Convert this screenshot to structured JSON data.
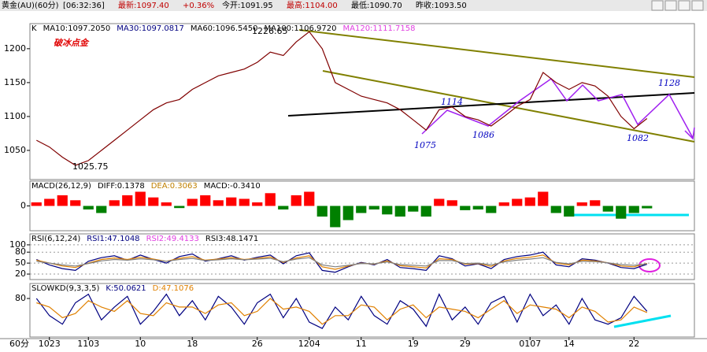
{
  "top_bar": [
    {
      "text": "黄金(AU)(60分)",
      "color": "#000000"
    },
    {
      "text": "[06:32:36]",
      "color": "#000000"
    },
    {
      "text": "最新:1097.40",
      "color": "#c00000"
    },
    {
      "text": "+0.36%",
      "color": "#c00000"
    },
    {
      "text": "今开:1091.95",
      "color": "#000000"
    },
    {
      "text": "最高:1104.00",
      "color": "#c00000"
    },
    {
      "text": "最低:1090.70",
      "color": "#000000"
    },
    {
      "text": "昨收:1093.50",
      "color": "#000000"
    }
  ],
  "period_label": "60分",
  "chart_data": [
    {
      "type": "line",
      "title": "破冰点金",
      "header": [
        {
          "text": "K",
          "color": "#000000"
        },
        {
          "text": "MA10:1097.2050",
          "color": "#000000"
        },
        {
          "text": "MA30:1097.0817",
          "color": "#000080"
        },
        {
          "text": "MA60:1096.5450",
          "color": "#000000"
        },
        {
          "text": "MA100:1106.9720",
          "color": "#000000"
        },
        {
          "text": "MA120:1111.7158",
          "color": "#e040e0"
        }
      ],
      "annotations": [
        "1226.65",
        "1025.75",
        "1114",
        "1075",
        "1086",
        "1082",
        "1128"
      ],
      "categories": [
        null,
        "1023",
        null,
        null,
        "1103",
        null,
        null,
        null,
        "10",
        null,
        null,
        null,
        "18",
        null,
        null,
        null,
        null,
        "26",
        null,
        null,
        null,
        "1204",
        null,
        null,
        null,
        "11",
        null,
        null,
        null,
        "19",
        null,
        null,
        null,
        "29",
        null,
        null,
        null,
        null,
        "0107",
        null,
        null,
        "14",
        null,
        null,
        null,
        null,
        "22",
        null
      ],
      "values": [
        1065,
        1055,
        1040,
        1028,
        1035,
        1050,
        1065,
        1080,
        1095,
        1110,
        1120,
        1125,
        1140,
        1150,
        1160,
        1165,
        1170,
        1180,
        1195,
        1190,
        1210,
        1225,
        1200,
        1150,
        1140,
        1130,
        1125,
        1120,
        1110,
        1095,
        1080,
        1110,
        1114,
        1100,
        1095,
        1086,
        1100,
        1115,
        1125,
        1165,
        1150,
        1140,
        1150,
        1145,
        1130,
        1100,
        1082,
        1097
      ],
      "color": "#800000",
      "ylim": [
        1007,
        1237
      ],
      "yticks": [
        1050,
        1100,
        1150,
        1200
      ],
      "grid": false
    },
    {
      "type": "bar",
      "header": [
        {
          "text": "MACD(26,12,9)",
          "color": "#000000"
        },
        {
          "text": "DIFF:0.1378",
          "color": "#000000"
        },
        {
          "text": "DEA:0.3063",
          "color": "#c08000"
        },
        {
          "text": "MACD:-0.3410",
          "color": "#000000"
        }
      ],
      "values": [
        0.5,
        1,
        1.5,
        0.8,
        -0.5,
        -1,
        0.8,
        1.5,
        2,
        1.2,
        0.5,
        -0.3,
        1,
        1.5,
        0.8,
        1.2,
        1,
        0.5,
        1.8,
        -0.5,
        1.5,
        2,
        -1.5,
        -3,
        -2,
        -1,
        -0.5,
        -1.2,
        -1.5,
        -0.8,
        -1.5,
        1,
        0.8,
        -0.6,
        -0.5,
        -1,
        0.5,
        1,
        1.2,
        2,
        -1,
        -1.5,
        0.5,
        0.8,
        -0.8,
        -1.8,
        -1,
        -0.341
      ],
      "up_color": "#ff0000",
      "down_color": "#008000",
      "ylim": [
        -3.5,
        3.5
      ],
      "yticks": [
        0
      ],
      "grid": false
    },
    {
      "type": "line",
      "header": [
        {
          "text": "RSI(6,12,24)",
          "color": "#000000"
        },
        {
          "text": "RSI1:47.1048",
          "color": "#000080"
        },
        {
          "text": "RSI2:49.4133",
          "color": "#e040e0"
        },
        {
          "text": "RSI3:48.1471",
          "color": "#000000"
        }
      ],
      "series": [
        {
          "color": "#000080",
          "values": [
            60,
            45,
            35,
            30,
            55,
            65,
            70,
            58,
            72,
            60,
            50,
            68,
            75,
            55,
            62,
            70,
            58,
            66,
            72,
            48,
            70,
            78,
            30,
            25,
            40,
            52,
            45,
            60,
            38,
            35,
            30,
            70,
            62,
            42,
            48,
            35,
            60,
            68,
            72,
            80,
            45,
            40,
            62,
            58,
            50,
            38,
            35,
            47.1
          ]
        },
        {
          "color": "#e08000",
          "values": [
            58,
            50,
            42,
            38,
            50,
            60,
            64,
            60,
            66,
            61,
            55,
            63,
            68,
            58,
            61,
            65,
            60,
            63,
            67,
            52,
            64,
            70,
            40,
            33,
            42,
            50,
            47,
            56,
            43,
            40,
            37,
            62,
            60,
            47,
            49,
            41,
            56,
            63,
            66,
            72,
            50,
            45,
            58,
            56,
            51,
            42,
            40,
            49.4
          ]
        },
        {
          "color": "#808080",
          "values": [
            55,
            50,
            45,
            42,
            49,
            56,
            60,
            58,
            62,
            59,
            55,
            60,
            63,
            57,
            59,
            62,
            59,
            61,
            63,
            54,
            61,
            65,
            45,
            40,
            44,
            49,
            48,
            53,
            46,
            44,
            42,
            57,
            57,
            49,
            50,
            45,
            53,
            58,
            61,
            65,
            52,
            48,
            55,
            54,
            51,
            46,
            44,
            48.1
          ]
        }
      ],
      "ylim": [
        5,
        130
      ],
      "yticks": [
        20,
        50,
        80,
        100
      ],
      "grid": true
    },
    {
      "type": "line",
      "header": [
        {
          "text": "SLOWKD(9,3,3,5)",
          "color": "#000000"
        },
        {
          "text": "K:50.0621",
          "color": "#000080"
        },
        {
          "text": "D:47.1076",
          "color": "#e08000"
        }
      ],
      "series": [
        {
          "color": "#000080",
          "values": [
            80,
            40,
            20,
            70,
            90,
            30,
            60,
            85,
            20,
            50,
            90,
            40,
            75,
            30,
            85,
            60,
            20,
            70,
            90,
            35,
            80,
            25,
            10,
            60,
            30,
            85,
            40,
            20,
            75,
            55,
            15,
            90,
            30,
            60,
            20,
            70,
            85,
            25,
            90,
            40,
            65,
            20,
            80,
            30,
            20,
            35,
            85,
            50.1
          ]
        },
        {
          "color": "#e08000",
          "values": [
            70,
            60,
            35,
            45,
            75,
            60,
            50,
            75,
            45,
            40,
            70,
            60,
            60,
            45,
            65,
            70,
            40,
            50,
            80,
            55,
            60,
            50,
            20,
            40,
            40,
            65,
            60,
            30,
            55,
            65,
            35,
            60,
            55,
            50,
            35,
            55,
            75,
            45,
            65,
            60,
            55,
            35,
            60,
            50,
            25,
            30,
            60,
            47.1
          ]
        }
      ],
      "ylim": [
        -10,
        115
      ],
      "yticks": [
        80
      ],
      "grid": false
    }
  ]
}
